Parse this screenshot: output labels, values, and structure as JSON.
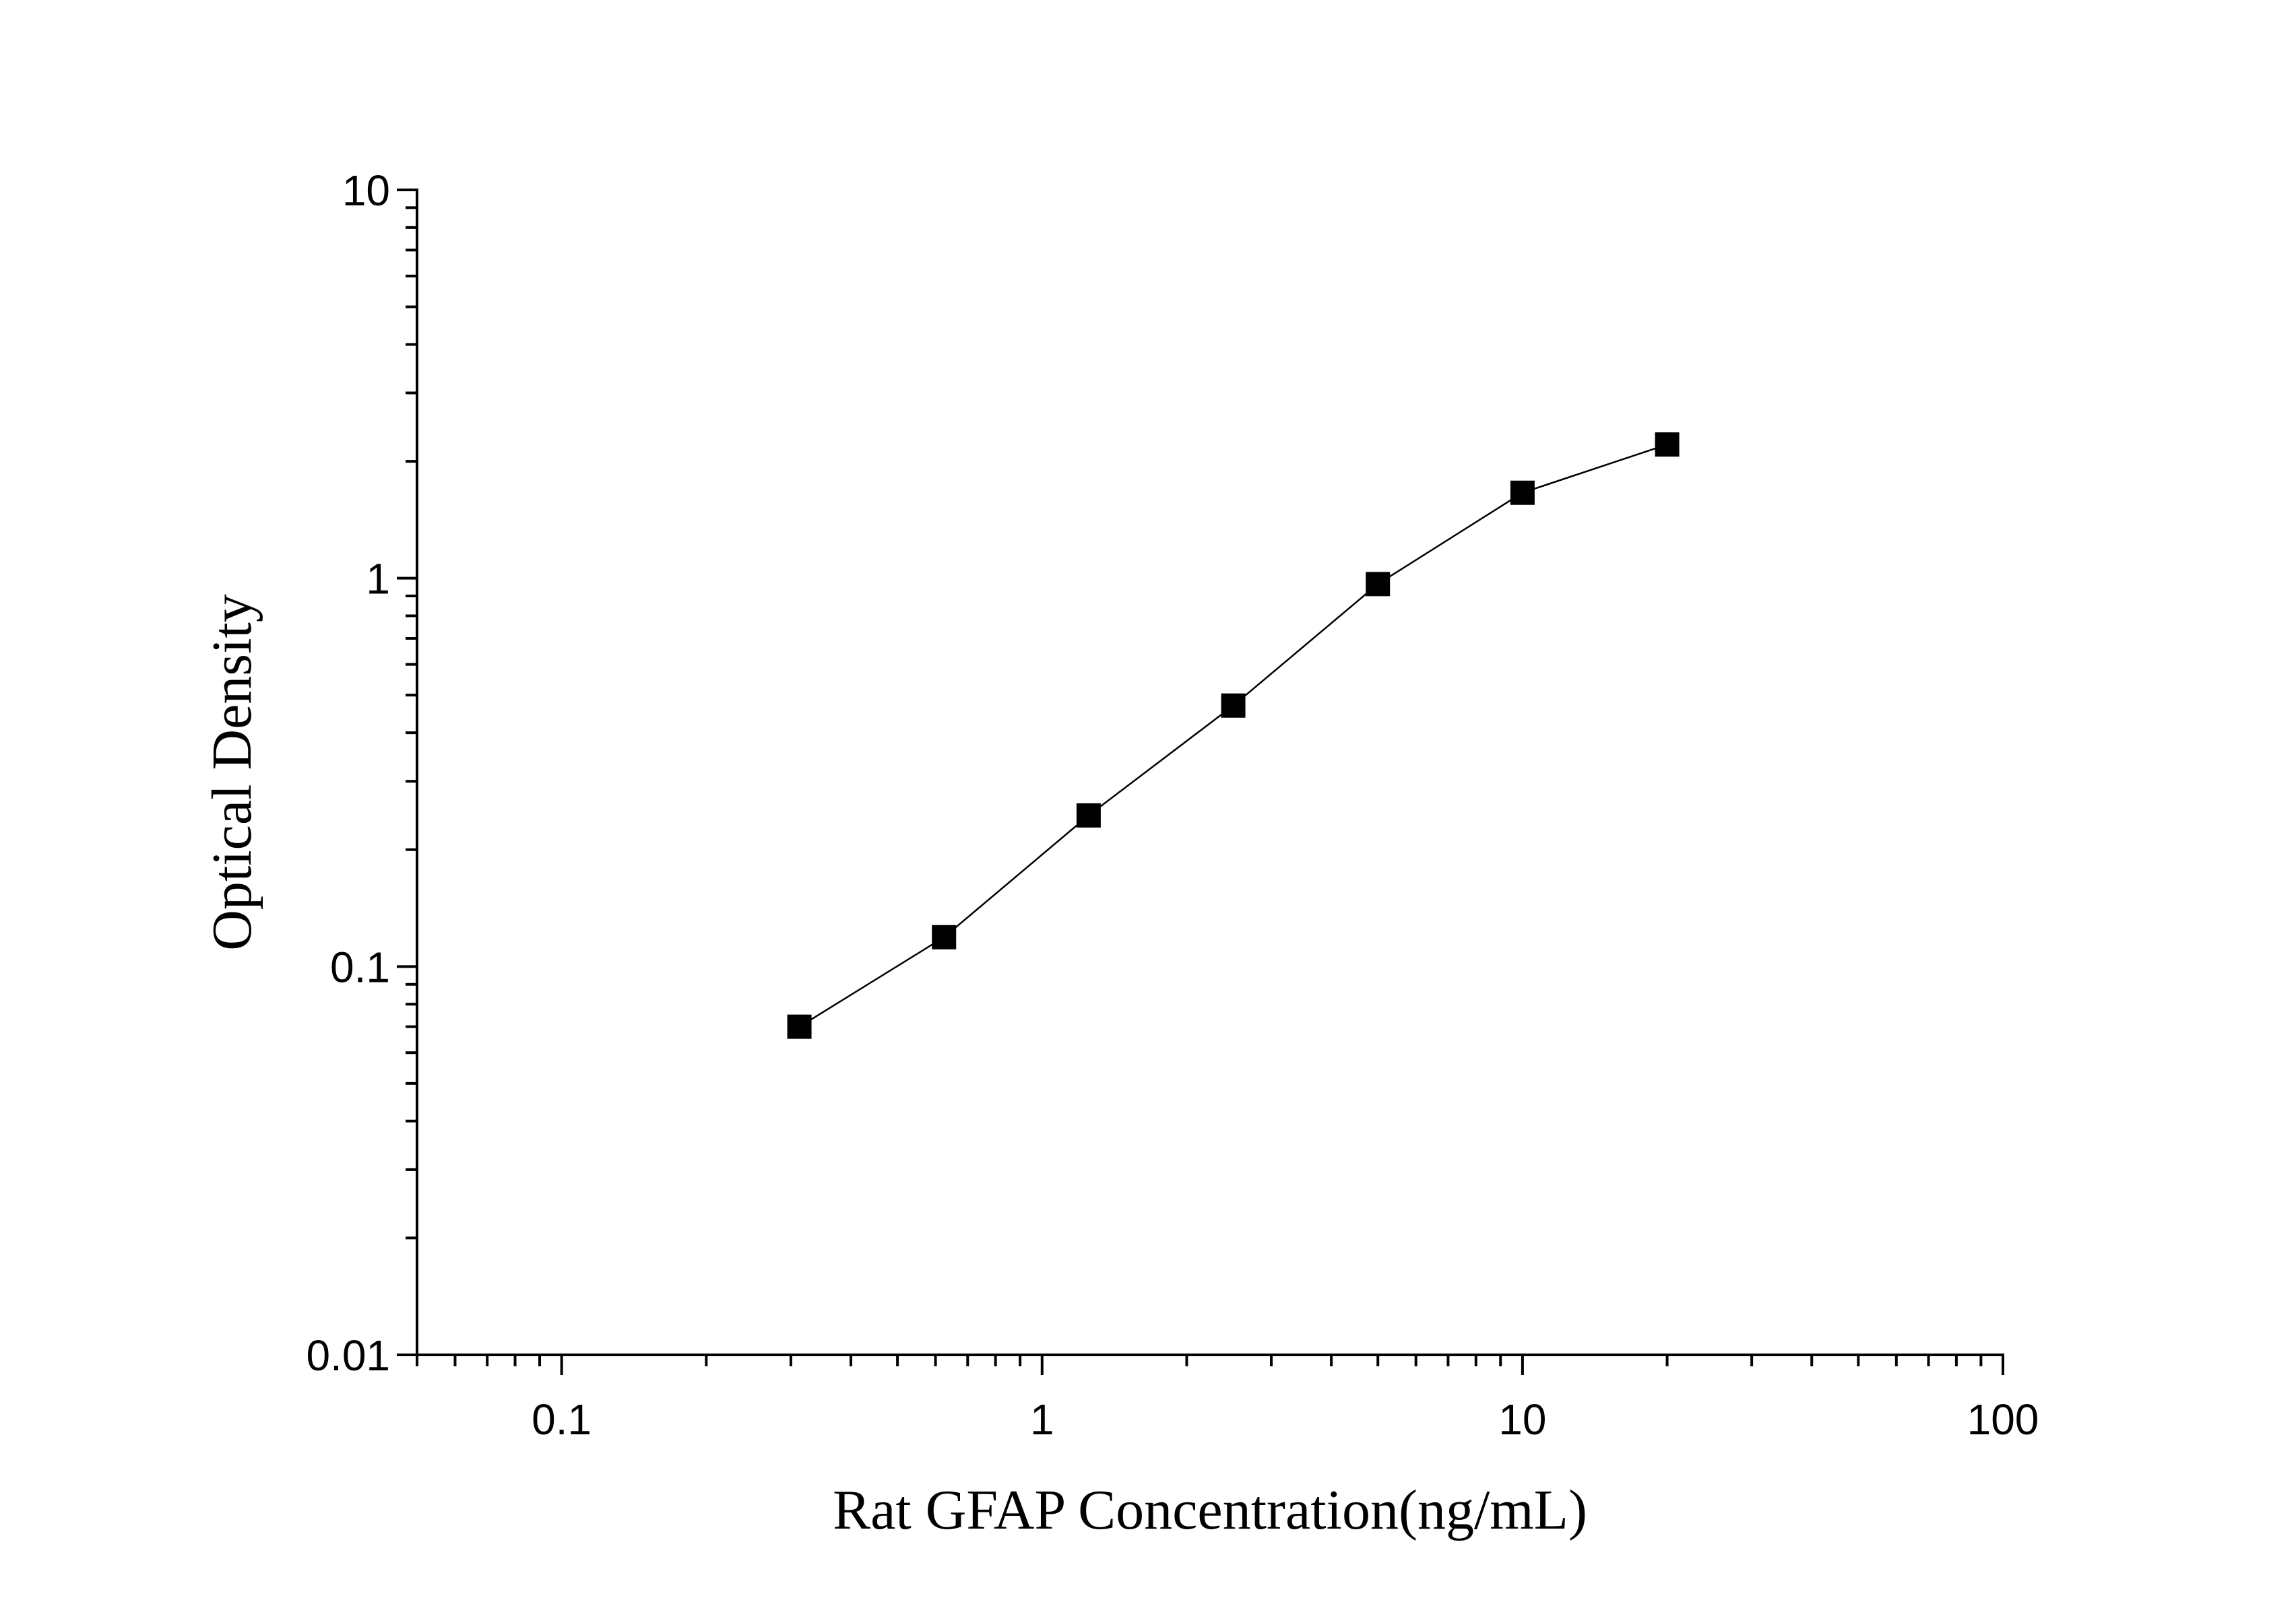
{
  "chart_data": {
    "type": "scatter",
    "x_label": "Rat GFAP Concentration(ng/mL)",
    "y_label": "Optical Density",
    "x_scale": "log",
    "y_scale": "log",
    "xlim": [
      0.05,
      100
    ],
    "xticks": [
      0.1,
      1,
      10,
      100
    ],
    "ylim": [
      0.01,
      10
    ],
    "yticks": [
      0.01,
      0.1,
      1,
      10
    ],
    "connect_line": true,
    "series": [
      {
        "color": "#000000",
        "x": [
          0.3125,
          0.625,
          1.25,
          2.5,
          5,
          10,
          20
        ],
        "values": [
          0.07,
          0.119,
          0.245,
          0.47,
          0.966,
          1.66,
          2.21
        ]
      }
    ]
  }
}
